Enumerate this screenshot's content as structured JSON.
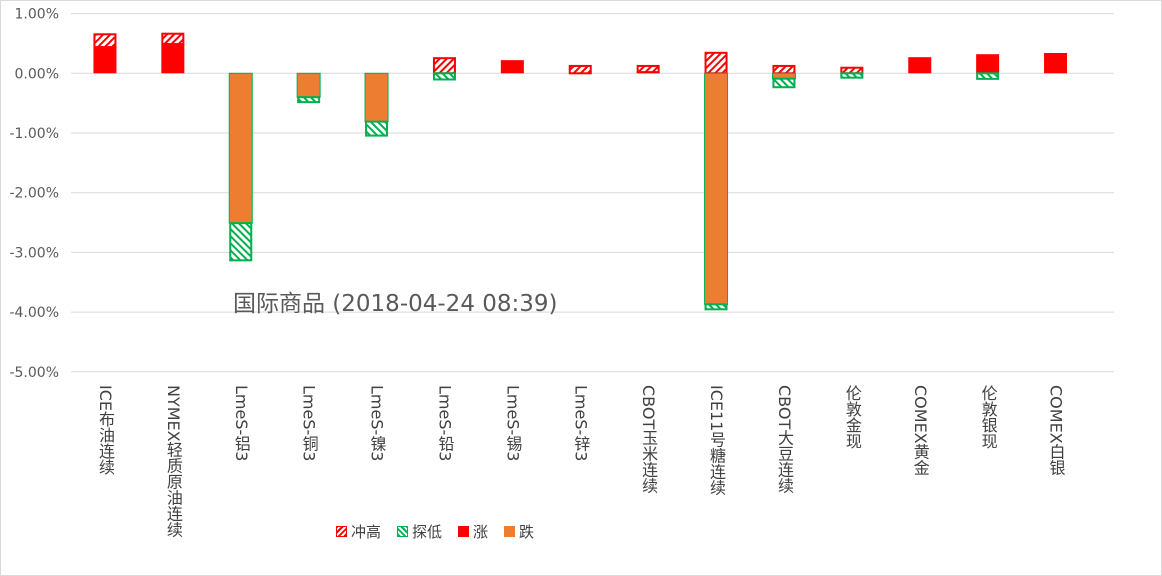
{
  "chart_data": {
    "type": "bar",
    "title": "国际商品 (2018-04-24 08:39)",
    "xlabel": "",
    "ylabel": "",
    "ylim": [
      -5,
      1
    ],
    "y_ticks": [
      "1.00%",
      "0.00%",
      "-1.00%",
      "-2.00%",
      "-3.00%",
      "-4.00%",
      "-5.00%"
    ],
    "y_tick_values": [
      1,
      0,
      -1,
      -2,
      -3,
      -4,
      -5
    ],
    "grid": true,
    "legend_position": "bottom",
    "stacked": true,
    "unit": "%",
    "categories": [
      "ICE布油连续",
      "NYMEX轻质原油连续",
      "LmeS-铝3",
      "LmeS-铜3",
      "LmeS-镍3",
      "LmeS-铅3",
      "LmeS-锡3",
      "LmeS-锌3",
      "CBOT玉米连续",
      "ICE11号糖连续",
      "CBOT大豆连续",
      "伦敦金现",
      "COMEX黄金",
      "伦敦银现",
      "COMEX白银"
    ],
    "series": [
      {
        "name": "冲高",
        "color": "#ff0000",
        "pattern": "hatch-up",
        "values": [
          0.23,
          0.19,
          0,
          0,
          0,
          0.27,
          0,
          0.14,
          0.12,
          0.36,
          0.14,
          0.11,
          0,
          0,
          0.03
        ]
      },
      {
        "name": "探低",
        "color": "#00b050",
        "pattern": "hatch-down",
        "values": [
          0,
          0,
          -0.64,
          -0.1,
          -0.25,
          -0.12,
          0,
          0,
          0,
          -0.1,
          -0.16,
          -0.09,
          0,
          -0.11,
          0
        ]
      },
      {
        "name": "涨",
        "color": "#ff0000",
        "pattern": "solid",
        "values": [
          0.44,
          0.49,
          0,
          0,
          0,
          0,
          0.22,
          0,
          0.02,
          0,
          0,
          0,
          0.27,
          0.32,
          0.31
        ]
      },
      {
        "name": "跌",
        "color": "#ed7d31",
        "pattern": "solid",
        "values": [
          0,
          0,
          -2.51,
          -0.4,
          -0.81,
          0,
          0,
          0,
          0,
          -3.87,
          -0.09,
          0,
          0,
          0,
          0
        ]
      }
    ]
  }
}
